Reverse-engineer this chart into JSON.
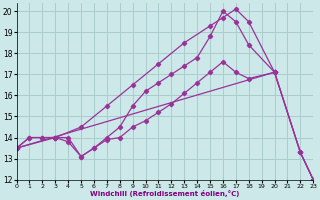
{
  "xlabel": "Windchill (Refroidissement éolien,°C)",
  "bg_color": "#cce8e8",
  "grid_color": "#aacccc",
  "line_color": "#993399",
  "xlim": [
    0,
    23
  ],
  "ylim": [
    12,
    20.4
  ],
  "xticks": [
    0,
    1,
    2,
    3,
    4,
    5,
    6,
    7,
    8,
    9,
    10,
    11,
    12,
    13,
    14,
    15,
    16,
    17,
    18,
    19,
    20,
    21,
    22,
    23
  ],
  "yticks": [
    12,
    13,
    14,
    15,
    16,
    17,
    18,
    19,
    20
  ],
  "series_x": [
    [
      0,
      1,
      2,
      3,
      4,
      5,
      6,
      7,
      8,
      9,
      10,
      11,
      12,
      13,
      14,
      15,
      16,
      17,
      18,
      20
    ],
    [
      0,
      1,
      2,
      3,
      4,
      5,
      6,
      7,
      8,
      9,
      10,
      11,
      12,
      13,
      14,
      15,
      16,
      17,
      18,
      20,
      22,
      23
    ],
    [
      0,
      3,
      5,
      7,
      9,
      11,
      13,
      15,
      16,
      17,
      18,
      20,
      22,
      23
    ],
    [
      0,
      20,
      22,
      23
    ]
  ],
  "series_y": [
    [
      13.5,
      14.0,
      14.0,
      14.0,
      14.0,
      13.1,
      13.5,
      13.9,
      14.0,
      14.5,
      14.8,
      15.2,
      15.6,
      16.1,
      16.6,
      17.1,
      17.6,
      17.1,
      16.8,
      17.1
    ],
    [
      13.5,
      14.0,
      14.0,
      14.0,
      13.8,
      13.1,
      13.5,
      14.0,
      14.5,
      15.5,
      16.2,
      16.6,
      17.0,
      17.4,
      17.8,
      18.8,
      20.0,
      19.5,
      18.4,
      17.1,
      13.3,
      12.0
    ],
    [
      13.5,
      14.0,
      14.5,
      15.5,
      16.5,
      17.5,
      18.5,
      19.3,
      19.7,
      20.1,
      19.5,
      17.1,
      13.3,
      12.0
    ],
    [
      13.5,
      17.1,
      13.3,
      12.0
    ]
  ]
}
